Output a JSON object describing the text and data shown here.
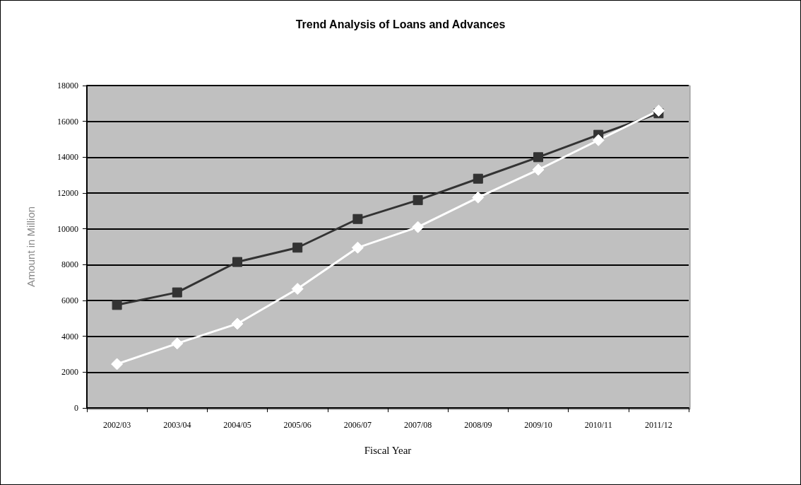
{
  "chart_data": {
    "type": "line",
    "title": "Trend Analysis of Loans and Advances",
    "xlabel": "Fiscal Year",
    "ylabel": "Amount in Million",
    "categories": [
      "2002/03",
      "2003/04",
      "2004/05",
      "2005/06",
      "2006/07",
      "2007/08",
      "2008/09",
      "2009/10",
      "2010/11",
      "2011/12"
    ],
    "series": [
      {
        "color": "#333333",
        "marker": "square",
        "values": [
          5750,
          6450,
          8150,
          8950,
          10550,
          11600,
          12800,
          14000,
          15250,
          16450
        ]
      },
      {
        "color": "#ffffff",
        "marker": "diamond",
        "values": [
          2450,
          3600,
          4700,
          6650,
          8950,
          10100,
          11750,
          13300,
          14950,
          16600
        ]
      }
    ],
    "ylim": [
      0,
      18000
    ],
    "yticks": [
      0,
      2000,
      4000,
      6000,
      8000,
      10000,
      12000,
      14000,
      16000,
      18000
    ],
    "grid": "y",
    "line_style": "solid"
  }
}
